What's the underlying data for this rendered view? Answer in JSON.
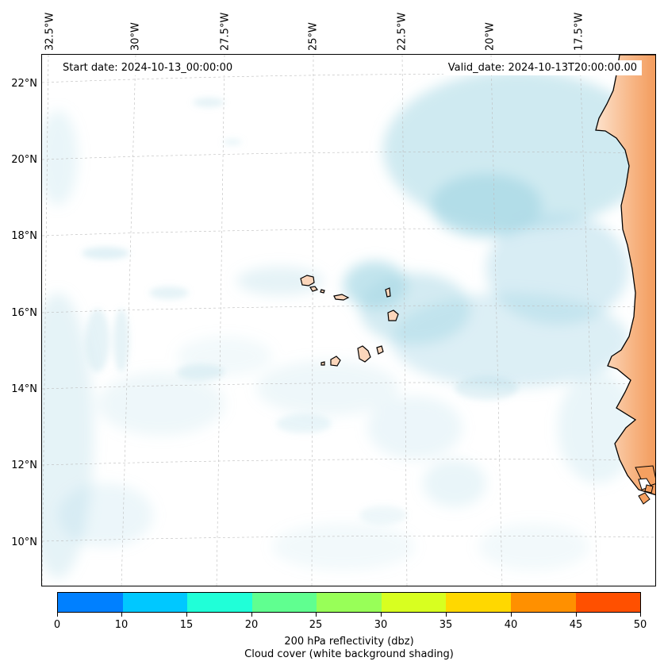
{
  "map": {
    "start_date": "Start date: 2024-10-13_00:00:00",
    "valid_date": "Valid_date: 2024-10-13T20:00:00.00",
    "longitude_labels": [
      "32.5°W",
      "30°W",
      "27.5°W",
      "25°W",
      "22.5°W",
      "20°W",
      "17.5°W"
    ],
    "latitude_labels": [
      "22°N",
      "20°N",
      "18°N",
      "16°N",
      "14°N",
      "12°N",
      "10°N"
    ],
    "cloud_color": "#a8d8e6",
    "land_color": "#f5a060"
  },
  "colorbar": {
    "ticks": [
      "0",
      "10",
      "15",
      "20",
      "25",
      "30",
      "35",
      "40",
      "45",
      "50"
    ],
    "colors": [
      "#0080ff",
      "#00c8ff",
      "#20ffd8",
      "#60ff90",
      "#98ff58",
      "#d8ff20",
      "#ffd800",
      "#ff9000",
      "#ff5000"
    ],
    "title": "200 hPa reflectivity (dbz)",
    "subtitle": "Cloud cover (white background shading)"
  }
}
